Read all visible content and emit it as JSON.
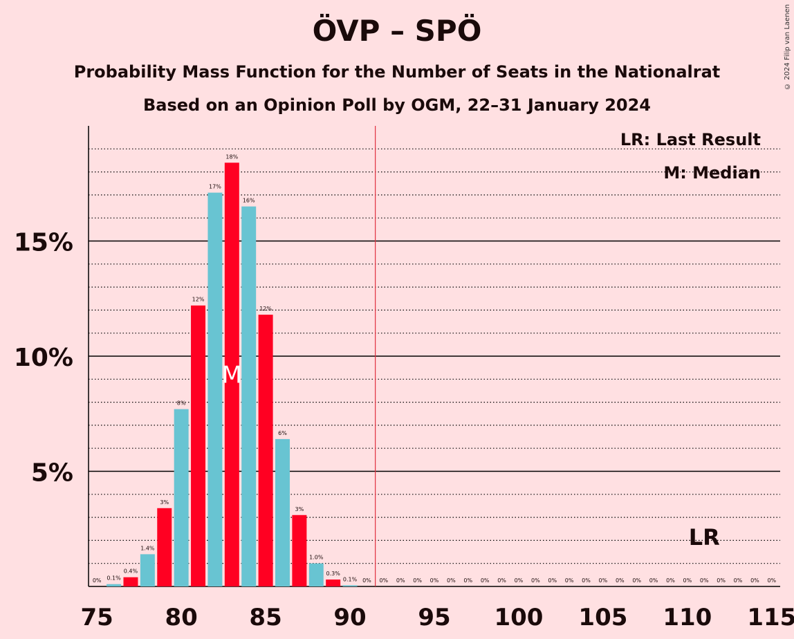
{
  "title": "ÖVP – SPÖ",
  "subtitle": "Probability Mass Function for the Number of Seats in the Nationalrat",
  "subtitle2": "Based on an Opinion Poll by OGM, 22–31 January 2024",
  "copyright": "© 2024 Filip van Laenen",
  "legend": {
    "last_result": "LR: Last Result",
    "median": "M: Median"
  },
  "colors": {
    "red": "#ff0022",
    "cyan": "#68c4d2",
    "background": "#ffe0e2",
    "marker_line": "#e03040"
  },
  "chart_data": {
    "type": "bar",
    "title": "ÖVP – SPÖ",
    "xlabel": "",
    "ylabel": "",
    "xlim": [
      75,
      115
    ],
    "ylim": [
      0,
      20
    ],
    "x_ticks": [
      "75",
      "80",
      "85",
      "90",
      "95",
      "100",
      "105",
      "110",
      "115"
    ],
    "y_ticks": [
      "5%",
      "10%",
      "15%"
    ],
    "median": 83,
    "median_label": "M",
    "last_result": 111,
    "last_result_label": "LR",
    "majority_line": 92,
    "bars": [
      {
        "seats": 75,
        "value": 0,
        "label": "0%"
      },
      {
        "seats": 76,
        "value": 0.1,
        "label": "0.1%"
      },
      {
        "seats": 77,
        "value": 0.4,
        "label": "0.4%"
      },
      {
        "seats": 78,
        "value": 1.4,
        "label": "1.4%"
      },
      {
        "seats": 79,
        "value": 3.4,
        "label": "3%"
      },
      {
        "seats": 80,
        "value": 7.7,
        "label": "8%"
      },
      {
        "seats": 81,
        "value": 12.2,
        "label": "12%"
      },
      {
        "seats": 82,
        "value": 17.1,
        "label": "17%"
      },
      {
        "seats": 83,
        "value": 18.4,
        "label": "18%"
      },
      {
        "seats": 84,
        "value": 16.5,
        "label": "16%"
      },
      {
        "seats": 85,
        "value": 11.8,
        "label": "12%"
      },
      {
        "seats": 86,
        "value": 6.4,
        "label": "6%"
      },
      {
        "seats": 87,
        "value": 3.1,
        "label": "3%"
      },
      {
        "seats": 88,
        "value": 1.0,
        "label": "1.0%"
      },
      {
        "seats": 89,
        "value": 0.3,
        "label": "0.3%"
      },
      {
        "seats": 90,
        "value": 0.05,
        "label": "0.1%"
      },
      {
        "seats": 91,
        "value": 0,
        "label": "0%"
      },
      {
        "seats": 92,
        "value": 0,
        "label": "0%"
      },
      {
        "seats": 93,
        "value": 0,
        "label": "0%"
      },
      {
        "seats": 94,
        "value": 0,
        "label": "0%"
      },
      {
        "seats": 95,
        "value": 0,
        "label": "0%"
      },
      {
        "seats": 96,
        "value": 0,
        "label": "0%"
      },
      {
        "seats": 97,
        "value": 0,
        "label": "0%"
      },
      {
        "seats": 98,
        "value": 0,
        "label": "0%"
      },
      {
        "seats": 99,
        "value": 0,
        "label": "0%"
      },
      {
        "seats": 100,
        "value": 0,
        "label": "0%"
      },
      {
        "seats": 101,
        "value": 0,
        "label": "0%"
      },
      {
        "seats": 102,
        "value": 0,
        "label": "0%"
      },
      {
        "seats": 103,
        "value": 0,
        "label": "0%"
      },
      {
        "seats": 104,
        "value": 0,
        "label": "0%"
      },
      {
        "seats": 105,
        "value": 0,
        "label": "0%"
      },
      {
        "seats": 106,
        "value": 0,
        "label": "0%"
      },
      {
        "seats": 107,
        "value": 0,
        "label": "0%"
      },
      {
        "seats": 108,
        "value": 0,
        "label": "0%"
      },
      {
        "seats": 109,
        "value": 0,
        "label": "0%"
      },
      {
        "seats": 110,
        "value": 0,
        "label": "0%"
      },
      {
        "seats": 111,
        "value": 0,
        "label": "0%"
      },
      {
        "seats": 112,
        "value": 0,
        "label": "0%"
      },
      {
        "seats": 113,
        "value": 0,
        "label": "0%"
      },
      {
        "seats": 114,
        "value": 0,
        "label": "0%"
      },
      {
        "seats": 115,
        "value": 0,
        "label": "0%"
      }
    ]
  }
}
